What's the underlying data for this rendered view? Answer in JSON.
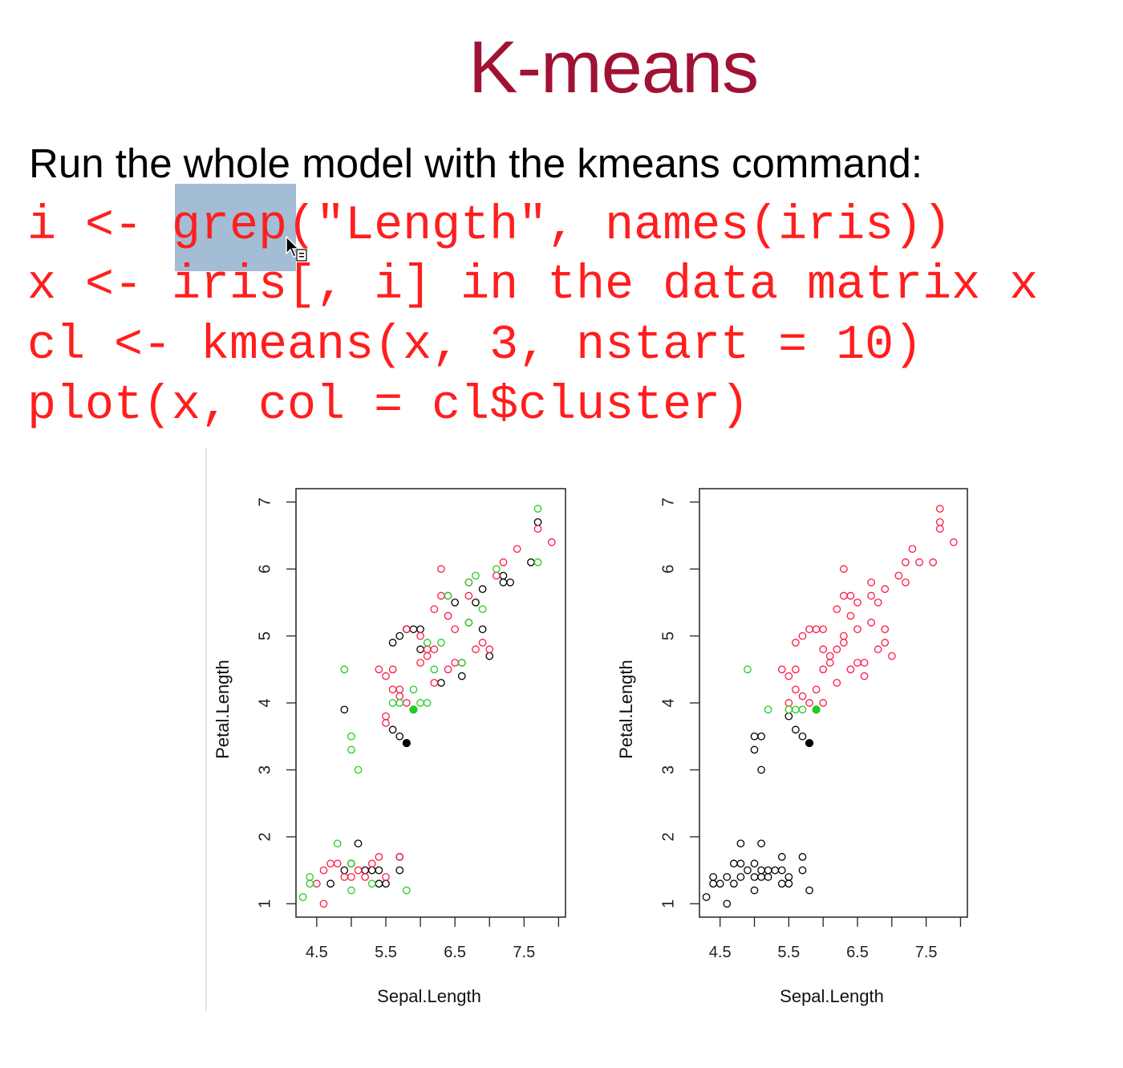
{
  "slide": {
    "title": "K-means",
    "subtitle": "Run the whole model with the kmeans command:",
    "code": [
      "i <- grep(\"Length\", names(iris))",
      "x <- iris[, i] in the data matrix x",
      "cl <- kmeans(x, 3, nstart = 10)",
      "plot(x, col = cl$cluster)"
    ],
    "selection": "grep"
  },
  "colors": {
    "title": "#a01233",
    "code": "#ff1e1e",
    "cluster_black": "#000000",
    "cluster_red": "#ff1744",
    "cluster_green": "#22cc22"
  },
  "chart_data": [
    {
      "type": "scatter",
      "xlabel": "Sepal.Length",
      "ylabel": "Petal.Length",
      "xticks": [
        4.5,
        5.5,
        6.5,
        7.5
      ],
      "yticks": [
        1,
        2,
        3,
        4,
        5,
        6,
        7
      ],
      "xlim": [
        4.2,
        8.1
      ],
      "ylim": [
        0.8,
        7.2
      ],
      "series": [
        {
          "color": "#000000",
          "points": [
            [
              5.1,
              1.9
            ],
            [
              5.0,
              1.6
            ],
            [
              4.9,
              1.5
            ],
            [
              5.2,
              1.5
            ],
            [
              5.3,
              1.5
            ],
            [
              5.4,
              1.5
            ],
            [
              5.7,
              1.5
            ],
            [
              4.7,
              1.3
            ],
            [
              5.4,
              1.3
            ],
            [
              5.5,
              1.3
            ],
            [
              5.7,
              1.7
            ],
            [
              4.9,
              3.9
            ],
            [
              5.7,
              3.5
            ],
            [
              5.6,
              3.6
            ],
            [
              5.8,
              3.4
            ],
            [
              5.6,
              4.9
            ],
            [
              5.7,
              5.0
            ],
            [
              5.8,
              5.1
            ],
            [
              5.9,
              5.1
            ],
            [
              6.0,
              5.1
            ],
            [
              6.0,
              4.8
            ],
            [
              6.3,
              4.3
            ],
            [
              6.6,
              4.4
            ],
            [
              6.5,
              5.5
            ],
            [
              6.8,
              5.5
            ],
            [
              6.9,
              5.1
            ],
            [
              6.9,
              5.7
            ],
            [
              7.0,
              4.7
            ],
            [
              7.2,
              5.8
            ],
            [
              7.3,
              5.8
            ],
            [
              7.2,
              5.9
            ],
            [
              7.6,
              6.1
            ],
            [
              7.7,
              6.7
            ]
          ],
          "filled": [
            [
              5.8,
              3.4
            ]
          ]
        },
        {
          "color": "#ff1744",
          "points": [
            [
              4.6,
              1.0
            ],
            [
              4.5,
              1.3
            ],
            [
              4.6,
              1.5
            ],
            [
              4.7,
              1.6
            ],
            [
              4.8,
              1.6
            ],
            [
              4.9,
              1.4
            ],
            [
              5.0,
              1.4
            ],
            [
              5.1,
              1.5
            ],
            [
              5.2,
              1.4
            ],
            [
              5.3,
              1.6
            ],
            [
              5.4,
              1.7
            ],
            [
              5.5,
              1.4
            ],
            [
              5.7,
              1.7
            ],
            [
              5.4,
              4.5
            ],
            [
              5.5,
              4.4
            ],
            [
              5.6,
              4.5
            ],
            [
              5.5,
              3.8
            ],
            [
              5.5,
              3.7
            ],
            [
              5.6,
              4.2
            ],
            [
              5.7,
              4.2
            ],
            [
              5.7,
              4.1
            ],
            [
              5.8,
              4.0
            ],
            [
              5.8,
              5.1
            ],
            [
              6.0,
              4.6
            ],
            [
              6.1,
              4.7
            ],
            [
              6.2,
              4.8
            ],
            [
              6.2,
              5.4
            ],
            [
              6.3,
              6.0
            ],
            [
              6.3,
              5.6
            ],
            [
              6.4,
              5.6
            ],
            [
              6.4,
              5.3
            ],
            [
              6.5,
              4.6
            ],
            [
              6.6,
              4.6
            ],
            [
              6.7,
              5.8
            ],
            [
              6.7,
              5.2
            ],
            [
              6.8,
              4.8
            ],
            [
              6.9,
              4.9
            ],
            [
              7.0,
              4.8
            ],
            [
              7.1,
              5.9
            ],
            [
              7.2,
              6.1
            ],
            [
              7.4,
              6.3
            ],
            [
              7.7,
              6.6
            ],
            [
              7.9,
              6.4
            ],
            [
              6.7,
              5.6
            ],
            [
              6.5,
              5.1
            ],
            [
              6.4,
              4.5
            ],
            [
              6.2,
              4.3
            ],
            [
              6.0,
              5.0
            ],
            [
              6.1,
              4.8
            ]
          ],
          "filled": []
        },
        {
          "color": "#22cc22",
          "points": [
            [
              4.3,
              1.1
            ],
            [
              4.4,
              1.3
            ],
            [
              4.4,
              1.4
            ],
            [
              4.8,
              1.9
            ],
            [
              5.0,
              1.2
            ],
            [
              5.0,
              1.6
            ],
            [
              5.3,
              1.3
            ],
            [
              5.8,
              1.2
            ],
            [
              4.9,
              4.5
            ],
            [
              5.0,
              3.3
            ],
            [
              5.0,
              3.5
            ],
            [
              5.1,
              3.0
            ],
            [
              5.6,
              4.0
            ],
            [
              5.7,
              4.0
            ],
            [
              5.9,
              4.2
            ],
            [
              6.0,
              4.0
            ],
            [
              6.1,
              4.0
            ],
            [
              6.1,
              4.9
            ],
            [
              6.2,
              4.5
            ],
            [
              6.3,
              4.9
            ],
            [
              6.4,
              5.6
            ],
            [
              6.6,
              4.6
            ],
            [
              6.7,
              5.2
            ],
            [
              6.7,
              5.8
            ],
            [
              6.8,
              5.9
            ],
            [
              7.1,
              6.0
            ],
            [
              7.7,
              6.9
            ],
            [
              7.7,
              6.1
            ],
            [
              6.9,
              5.4
            ],
            [
              5.9,
              3.9
            ]
          ],
          "filled": [
            [
              5.9,
              3.9
            ]
          ]
        }
      ]
    },
    {
      "type": "scatter",
      "xlabel": "Sepal.Length",
      "ylabel": "Petal.Length",
      "xticks": [
        4.5,
        5.5,
        6.5,
        7.5
      ],
      "yticks": [
        1,
        2,
        3,
        4,
        5,
        6,
        7
      ],
      "xlim": [
        4.2,
        8.1
      ],
      "ylim": [
        0.8,
        7.2
      ],
      "series": [
        {
          "color": "#000000",
          "points": [
            [
              4.3,
              1.1
            ],
            [
              4.4,
              1.3
            ],
            [
              4.4,
              1.4
            ],
            [
              4.5,
              1.3
            ],
            [
              4.6,
              1.0
            ],
            [
              4.6,
              1.4
            ],
            [
              4.7,
              1.3
            ],
            [
              4.7,
              1.6
            ],
            [
              4.8,
              1.4
            ],
            [
              4.8,
              1.6
            ],
            [
              4.8,
              1.9
            ],
            [
              4.9,
              1.5
            ],
            [
              5.0,
              1.2
            ],
            [
              5.0,
              1.4
            ],
            [
              5.0,
              1.6
            ],
            [
              5.1,
              1.4
            ],
            [
              5.1,
              1.5
            ],
            [
              5.1,
              1.9
            ],
            [
              5.2,
              1.4
            ],
            [
              5.2,
              1.5
            ],
            [
              5.3,
              1.5
            ],
            [
              5.4,
              1.3
            ],
            [
              5.4,
              1.5
            ],
            [
              5.4,
              1.7
            ],
            [
              5.5,
              1.3
            ],
            [
              5.5,
              1.4
            ],
            [
              5.7,
              1.5
            ],
            [
              5.7,
              1.7
            ],
            [
              5.8,
              1.2
            ],
            [
              5.0,
              3.3
            ],
            [
              5.0,
              3.5
            ],
            [
              5.1,
              3.0
            ],
            [
              5.1,
              3.5
            ],
            [
              5.6,
              3.6
            ],
            [
              5.7,
              3.5
            ],
            [
              5.5,
              3.8
            ],
            [
              5.8,
              3.4
            ]
          ],
          "filled": [
            [
              5.8,
              3.4
            ]
          ]
        },
        {
          "color": "#ff1744",
          "points": [
            [
              5.5,
              4.0
            ],
            [
              5.6,
              4.2
            ],
            [
              5.7,
              4.1
            ],
            [
              5.8,
              4.0
            ],
            [
              5.9,
              4.2
            ],
            [
              6.0,
              4.0
            ],
            [
              5.4,
              4.5
            ],
            [
              5.5,
              4.4
            ],
            [
              5.6,
              4.5
            ],
            [
              5.6,
              4.9
            ],
            [
              5.7,
              5.0
            ],
            [
              5.8,
              5.1
            ],
            [
              5.9,
              5.1
            ],
            [
              6.0,
              5.1
            ],
            [
              6.0,
              4.8
            ],
            [
              6.1,
              4.7
            ],
            [
              6.2,
              4.8
            ],
            [
              6.2,
              4.3
            ],
            [
              6.2,
              5.4
            ],
            [
              6.3,
              6.0
            ],
            [
              6.3,
              5.6
            ],
            [
              6.3,
              4.9
            ],
            [
              6.4,
              5.6
            ],
            [
              6.4,
              5.3
            ],
            [
              6.4,
              4.5
            ],
            [
              6.5,
              4.6
            ],
            [
              6.5,
              5.5
            ],
            [
              6.5,
              5.1
            ],
            [
              6.6,
              4.4
            ],
            [
              6.6,
              4.6
            ],
            [
              6.7,
              5.8
            ],
            [
              6.7,
              5.2
            ],
            [
              6.7,
              5.6
            ],
            [
              6.8,
              4.8
            ],
            [
              6.8,
              5.5
            ],
            [
              6.9,
              4.9
            ],
            [
              6.9,
              5.1
            ],
            [
              6.9,
              5.7
            ],
            [
              7.0,
              4.7
            ],
            [
              7.1,
              5.9
            ],
            [
              7.2,
              5.8
            ],
            [
              7.2,
              6.1
            ],
            [
              7.3,
              6.3
            ],
            [
              7.4,
              6.1
            ],
            [
              7.6,
              6.1
            ],
            [
              7.7,
              6.6
            ],
            [
              7.7,
              6.7
            ],
            [
              7.7,
              6.9
            ],
            [
              7.9,
              6.4
            ],
            [
              6.1,
              4.6
            ],
            [
              6.0,
              4.5
            ],
            [
              6.3,
              5.0
            ]
          ],
          "filled": []
        },
        {
          "color": "#22cc22",
          "points": [
            [
              4.9,
              4.5
            ],
            [
              5.2,
              3.9
            ],
            [
              5.5,
              3.9
            ],
            [
              5.6,
              3.9
            ],
            [
              5.7,
              3.9
            ],
            [
              5.9,
              3.9
            ]
          ],
          "filled": [
            [
              5.9,
              3.9
            ]
          ]
        }
      ]
    }
  ]
}
